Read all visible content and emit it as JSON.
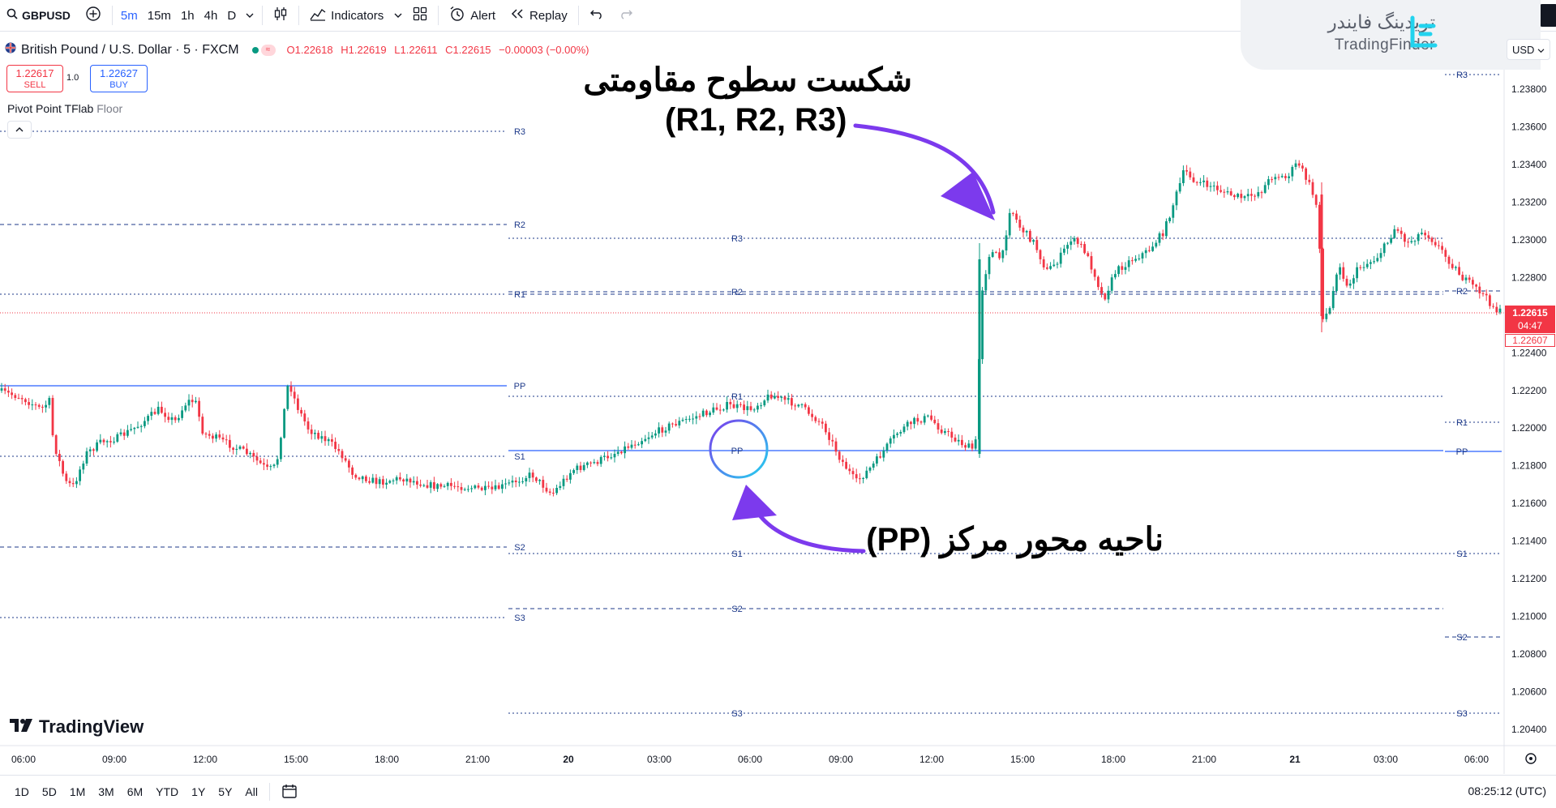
{
  "toolbar": {
    "symbol": "GBPUSD",
    "timeframes": [
      "5m",
      "15m",
      "1h",
      "4h",
      "D"
    ],
    "indicators_label": "Indicators",
    "alert_label": "Alert",
    "replay_label": "Replay"
  },
  "legend": {
    "title": "British Pound / U.S. Dollar · 5 · FXCM",
    "open": "O1.22618",
    "high": "H1.22619",
    "low": "L1.22611",
    "close": "C1.22615",
    "change": "−0.00003 (−0.00%)"
  },
  "trade": {
    "sell_price": "1.22617",
    "sell_label": "SELL",
    "quantity": "1.0",
    "buy_price": "1.22627",
    "buy_label": "BUY"
  },
  "indicator": {
    "name": "Pivot Point TFlab",
    "style": "Floor"
  },
  "branding": {
    "tradingfinder_fa": "تریدینگ فایندر",
    "tradingfinder_en": "TradingFinder",
    "tradingview": "TradingView"
  },
  "price_axis": {
    "currency": "USD",
    "ticks": [
      "1.23800",
      "1.23600",
      "1.23400",
      "1.23200",
      "1.23000",
      "1.22800",
      "1.22400",
      "1.22200",
      "1.22000",
      "1.21800",
      "1.21600",
      "1.21400",
      "1.21200",
      "1.21000",
      "1.20800",
      "1.20600",
      "1.20400"
    ],
    "current_price": "1.22615",
    "countdown": "04:47",
    "bid_price": "1.22607"
  },
  "time_axis": {
    "ticks": [
      "06:00",
      "09:00",
      "12:00",
      "15:00",
      "18:00",
      "21:00",
      "20",
      "03:00",
      "06:00",
      "09:00",
      "12:00",
      "15:00",
      "18:00",
      "21:00",
      "21",
      "03:00",
      "06:00"
    ]
  },
  "pivot_labels": {
    "day1": [
      "R3",
      "R2",
      "R1",
      "PP",
      "S1",
      "S2",
      "S3"
    ],
    "day2": [
      "R3",
      "R2",
      "R1",
      "PP",
      "S1",
      "S2",
      "S3"
    ],
    "day3": [
      "R3",
      "R2",
      "R1",
      "PP",
      "S1",
      "S2",
      "S3"
    ]
  },
  "annotations": {
    "resistance_break": "شکست سطوح مقاومتی",
    "resistance_levels": "(R1, R2, R3)",
    "pivot_zone": "ناحیه محور مرکز (PP)"
  },
  "bottom": {
    "ranges": [
      "1D",
      "5D",
      "1M",
      "3M",
      "6M",
      "YTD",
      "1Y",
      "5Y",
      "All"
    ],
    "clock": "08:25:12 (UTC)"
  },
  "colors": {
    "bull": "#089981",
    "bear": "#f23645",
    "pivot": "#2962ff",
    "arrow": "#7c3aed",
    "accent": "#2962ff"
  }
}
